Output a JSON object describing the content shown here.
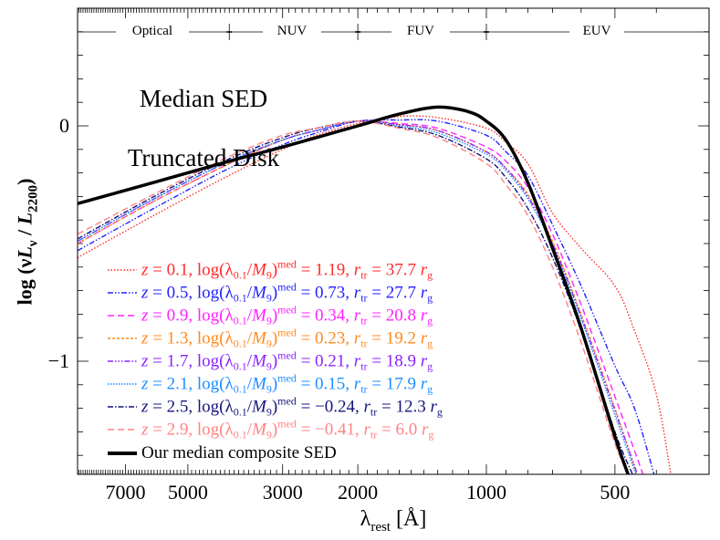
{
  "chart_data": {
    "type": "line",
    "title_lines": [
      "Median SED",
      "Truncated Disk"
    ],
    "xlabel": {
      "main": "λ",
      "sub": "rest",
      "unit": " [Å]"
    },
    "ylabel": {
      "pre": "log (ν",
      "L": "L",
      "nu": "ν",
      "mid": " / ",
      "L2": "L",
      "sub": "2200",
      "post": ")"
    },
    "x_scale": "log",
    "x_reversed": true,
    "xlim": [
      9060,
      301
    ],
    "ylim": [
      -1.48,
      0.5
    ],
    "x_ticks": [
      7000,
      5000,
      3000,
      2000,
      1000,
      500
    ],
    "x_tick_labels": [
      "7000",
      "5000",
      "3000",
      "2000",
      "1000",
      "500"
    ],
    "y_ticks": [
      0,
      -1
    ],
    "y_tick_labels": [
      "0",
      "−1"
    ],
    "grid": false,
    "legend_placement": "bottom-left",
    "bands": {
      "labels": [
        "Optical",
        "NUV",
        "FUV",
        "EUV"
      ],
      "boundaries": [
        4000,
        2000,
        1000
      ]
    },
    "legend_text": {
      "z": "z",
      "eq": " = ",
      "comma": ",  ",
      "log": "log(λ",
      "sub01": "0.1",
      "slash": "/",
      "M": "M",
      "sub9": "9",
      "close": ")",
      "sup": "med",
      "r": "r",
      "tr": "tr",
      "g": "g"
    },
    "series": [
      {
        "z": "0.1",
        "log_ratio": "1.19",
        "r_tr": "37.7",
        "color": "#ff2a2a",
        "dash": "1.5 2",
        "x": [
          9060,
          6000,
          4000,
          3000,
          2500,
          2000,
          1600,
          1300,
          1000,
          900,
          800,
          700,
          600,
          500,
          450,
          400,
          370
        ],
        "y": [
          -0.56,
          -0.38,
          -0.21,
          -0.1,
          -0.04,
          0.01,
          0.04,
          0.035,
          -0.01,
          -0.07,
          -0.16,
          -0.37,
          -0.52,
          -0.68,
          -0.87,
          -1.14,
          -1.48
        ]
      },
      {
        "z": "0.5",
        "log_ratio": "0.73",
        "r_tr": "27.7",
        "color": "#2323ff",
        "dash": "6 2 1.5 2 1.5 2",
        "x": [
          9060,
          6000,
          4000,
          3000,
          2500,
          2000,
          1600,
          1300,
          1000,
          900,
          800,
          700,
          600,
          500,
          450,
          405
        ],
        "y": [
          -0.53,
          -0.35,
          -0.18,
          -0.08,
          -0.03,
          0.02,
          0.025,
          0.02,
          -0.04,
          -0.11,
          -0.21,
          -0.42,
          -0.68,
          -1.02,
          -1.2,
          -1.48
        ]
      },
      {
        "z": "0.9",
        "log_ratio": "0.34",
        "r_tr": "20.8",
        "color": "#ff22ff",
        "dash": "7 4",
        "x": [
          9060,
          6000,
          4000,
          3000,
          2500,
          2000,
          1600,
          1300,
          1000,
          900,
          800,
          700,
          600,
          500,
          450,
          430
        ],
        "y": [
          -0.5,
          -0.32,
          -0.16,
          -0.06,
          -0.02,
          0.02,
          0.01,
          -0.01,
          -0.09,
          -0.15,
          -0.26,
          -0.46,
          -0.76,
          -1.15,
          -1.38,
          -1.48
        ]
      },
      {
        "z": "1.3",
        "log_ratio": "0.23",
        "r_tr": "19.2",
        "color": "#ff8a1e",
        "dash": "3 2",
        "x": [
          9060,
          6000,
          4000,
          3000,
          2500,
          2000,
          1600,
          1300,
          1000,
          900,
          800,
          700,
          600,
          500,
          445
        ],
        "y": [
          -0.5,
          -0.32,
          -0.16,
          -0.06,
          -0.02,
          0.02,
          0.005,
          -0.02,
          -0.11,
          -0.18,
          -0.29,
          -0.49,
          -0.8,
          -1.2,
          -1.48
        ]
      },
      {
        "z": "1.7",
        "log_ratio": "0.21",
        "r_tr": "18.9",
        "color": "#8a22ff",
        "dash": "6 2 1.5 2 1.5 2 1.5 2",
        "x": [
          9060,
          6000,
          4000,
          3000,
          2500,
          2000,
          1600,
          1300,
          1000,
          900,
          800,
          700,
          600,
          500,
          443
        ],
        "y": [
          -0.49,
          -0.31,
          -0.15,
          -0.06,
          -0.02,
          0.02,
          0.005,
          -0.02,
          -0.11,
          -0.18,
          -0.3,
          -0.5,
          -0.81,
          -1.21,
          -1.48
        ]
      },
      {
        "z": "2.1",
        "log_ratio": "0.15",
        "r_tr": "17.9",
        "color": "#1e8cff",
        "dash": "1.5 1.5",
        "x": [
          9060,
          6000,
          4000,
          3000,
          2500,
          2000,
          1600,
          1300,
          1000,
          900,
          800,
          700,
          600,
          500,
          447
        ],
        "y": [
          -0.49,
          -0.31,
          -0.15,
          -0.06,
          -0.02,
          0.02,
          0.0,
          -0.03,
          -0.12,
          -0.19,
          -0.31,
          -0.51,
          -0.82,
          -1.23,
          -1.48
        ]
      },
      {
        "z": "2.5",
        "log_ratio": "−0.24",
        "r_tr": "12.3",
        "color": "#14147a",
        "dash": "6 2 1.5 2",
        "x": [
          9060,
          6000,
          4000,
          3000,
          2500,
          2000,
          1600,
          1300,
          1000,
          900,
          800,
          700,
          600,
          500,
          455
        ],
        "y": [
          -0.48,
          -0.3,
          -0.14,
          -0.05,
          -0.01,
          0.02,
          -0.005,
          -0.04,
          -0.14,
          -0.22,
          -0.35,
          -0.56,
          -0.87,
          -1.3,
          -1.48
        ]
      },
      {
        "z": "2.9",
        "log_ratio": "−0.41",
        "r_tr": "6.0",
        "color": "#ff8282",
        "dash": "7 4",
        "x": [
          9060,
          6000,
          4000,
          3000,
          2500,
          2000,
          1600,
          1300,
          1000,
          900,
          800,
          700,
          600,
          500,
          465
        ],
        "y": [
          -0.46,
          -0.29,
          -0.13,
          -0.04,
          -0.01,
          0.02,
          -0.01,
          -0.05,
          -0.16,
          -0.25,
          -0.38,
          -0.6,
          -0.92,
          -1.35,
          -1.48
        ]
      },
      {
        "name": "Our median composite SED",
        "color": "#000000",
        "dash": "",
        "bold": true,
        "x": [
          9060,
          6000,
          4000,
          3000,
          2000,
          1600,
          1300,
          1100,
          1000,
          900,
          800,
          700,
          600,
          500,
          466
        ],
        "y": [
          -0.33,
          -0.24,
          -0.15,
          -0.09,
          0.0,
          0.05,
          0.08,
          0.06,
          0.02,
          -0.06,
          -0.24,
          -0.52,
          -0.86,
          -1.32,
          -1.48
        ]
      }
    ]
  }
}
